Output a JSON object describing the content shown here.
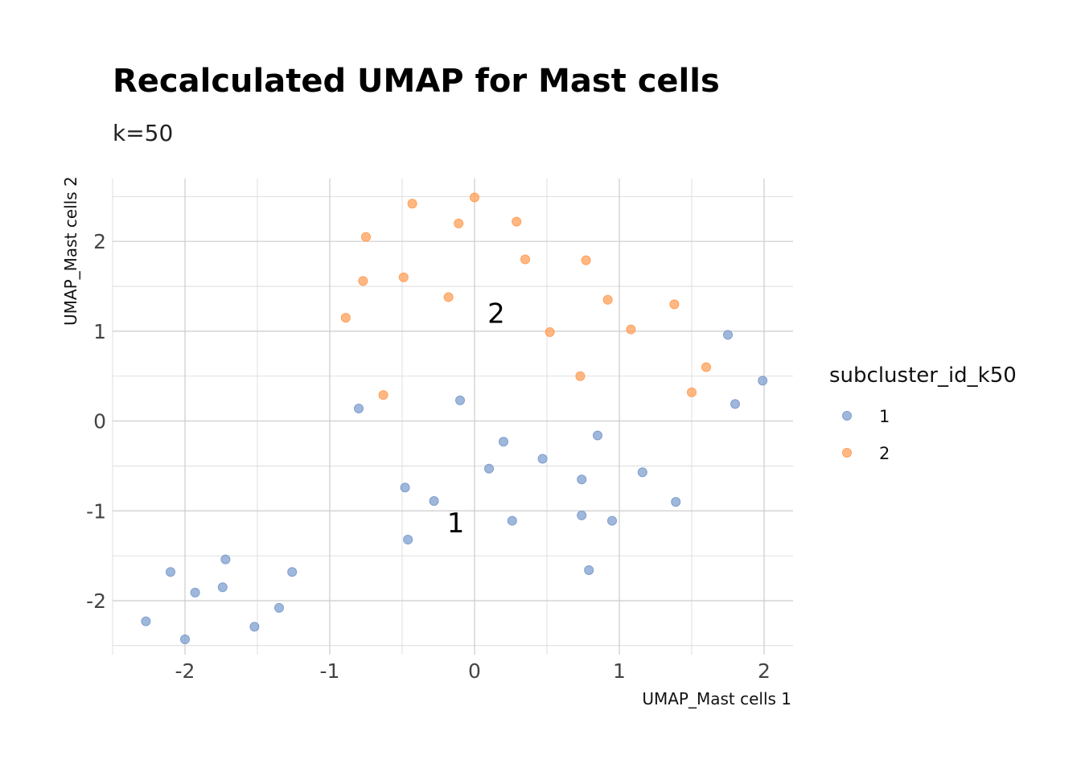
{
  "colors": {
    "cluster_1": "#7f9fcf",
    "cluster_2": "#ffa05a"
  },
  "chart_data": {
    "type": "scatter",
    "title": "Recalculated UMAP for Mast cells",
    "subtitle": "k=50",
    "xlabel": "UMAP_Mast cells 1",
    "ylabel": "UMAP_Mast cells 2",
    "xlim": [
      -2.5,
      2.2
    ],
    "ylim": [
      -2.6,
      2.7
    ],
    "x_ticks": [
      -2,
      -1,
      0,
      1,
      2
    ],
    "x_tick_labels": [
      "-2",
      "-1",
      "0",
      "1",
      "2"
    ],
    "y_ticks": [
      -2,
      -1,
      0,
      1,
      2
    ],
    "y_tick_labels": [
      "-2",
      "-1",
      "0",
      "1",
      "2"
    ],
    "grid": true,
    "legend": {
      "title": "subcluster_id_k50",
      "position": "right",
      "entries": [
        "1",
        "2"
      ]
    },
    "cluster_labels": [
      {
        "text": "2",
        "x": 0.15,
        "y": 1.2,
        "series": "2"
      },
      {
        "text": "1",
        "x": -0.13,
        "y": -1.13,
        "series": "1"
      }
    ],
    "series": [
      {
        "name": "1",
        "color": "#7f9fcf",
        "points": [
          [
            1.75,
            0.96
          ],
          [
            1.99,
            0.45
          ],
          [
            1.8,
            0.19
          ],
          [
            -0.1,
            0.23
          ],
          [
            -0.8,
            0.14
          ],
          [
            0.2,
            -0.23
          ],
          [
            0.85,
            -0.16
          ],
          [
            0.1,
            -0.53
          ],
          [
            0.47,
            -0.42
          ],
          [
            1.16,
            -0.57
          ],
          [
            0.74,
            -0.65
          ],
          [
            -0.48,
            -0.74
          ],
          [
            -0.28,
            -0.89
          ],
          [
            1.39,
            -0.9
          ],
          [
            0.74,
            -1.05
          ],
          [
            0.26,
            -1.11
          ],
          [
            0.95,
            -1.11
          ],
          [
            -0.46,
            -1.32
          ],
          [
            0.79,
            -1.66
          ],
          [
            -1.72,
            -1.54
          ],
          [
            -2.1,
            -1.68
          ],
          [
            -1.26,
            -1.68
          ],
          [
            -1.93,
            -1.91
          ],
          [
            -1.74,
            -1.85
          ],
          [
            -1.35,
            -2.08
          ],
          [
            -2.27,
            -2.23
          ],
          [
            -1.52,
            -2.29
          ],
          [
            -2.0,
            -2.43
          ]
        ]
      },
      {
        "name": "2",
        "color": "#ffa05a",
        "points": [
          [
            0.0,
            2.49
          ],
          [
            -0.43,
            2.42
          ],
          [
            -0.11,
            2.2
          ],
          [
            0.29,
            2.22
          ],
          [
            -0.75,
            2.05
          ],
          [
            0.35,
            1.8
          ],
          [
            0.77,
            1.79
          ],
          [
            -0.49,
            1.6
          ],
          [
            -0.77,
            1.56
          ],
          [
            -0.18,
            1.38
          ],
          [
            0.92,
            1.35
          ],
          [
            1.38,
            1.3
          ],
          [
            -0.89,
            1.15
          ],
          [
            0.52,
            0.99
          ],
          [
            1.08,
            1.02
          ],
          [
            1.6,
            0.6
          ],
          [
            0.73,
            0.5
          ],
          [
            1.5,
            0.32
          ],
          [
            -0.63,
            0.29
          ]
        ]
      }
    ]
  }
}
